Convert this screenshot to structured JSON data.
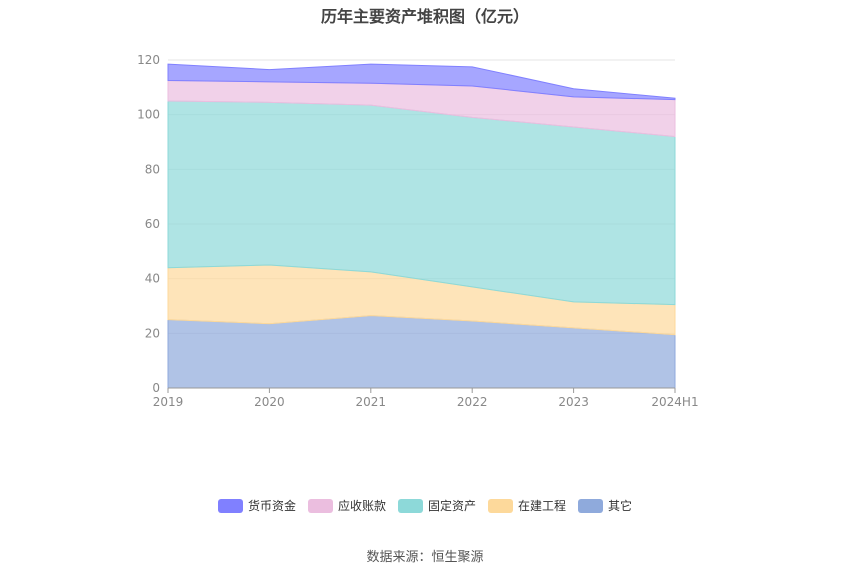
{
  "chart_data": {
    "type": "area",
    "stacked": true,
    "title": "历年主要资产堆积图（亿元）",
    "categories": [
      "2019",
      "2020",
      "2021",
      "2022",
      "2023",
      "2024H1"
    ],
    "ylim": [
      0,
      120
    ],
    "yticks": [
      0,
      20,
      40,
      60,
      80,
      100,
      120
    ],
    "grid": true,
    "legend_position": "bottom",
    "series": [
      {
        "name": "其它",
        "color": "#8faadc",
        "values": [
          25,
          23.5,
          26.5,
          24.5,
          22,
          19.5
        ]
      },
      {
        "name": "在建工程",
        "color": "#fdd99b",
        "values": [
          19,
          21.5,
          16,
          12.5,
          9.5,
          11
        ]
      },
      {
        "name": "固定资产",
        "color": "#8dd9d9",
        "values": [
          61,
          59.5,
          61,
          62,
          64,
          61.5
        ]
      },
      {
        "name": "应收账款",
        "color": "#ebbedf",
        "values": [
          7.5,
          7.5,
          8,
          11.5,
          11,
          13.5
        ]
      },
      {
        "name": "货币资金",
        "color": "#8080ff",
        "values": [
          6,
          4.5,
          7,
          7,
          3,
          0.5
        ]
      }
    ]
  },
  "legend_order": [
    "货币资金",
    "应收账款",
    "固定资产",
    "在建工程",
    "其它"
  ],
  "source": "数据来源：恒生聚源"
}
